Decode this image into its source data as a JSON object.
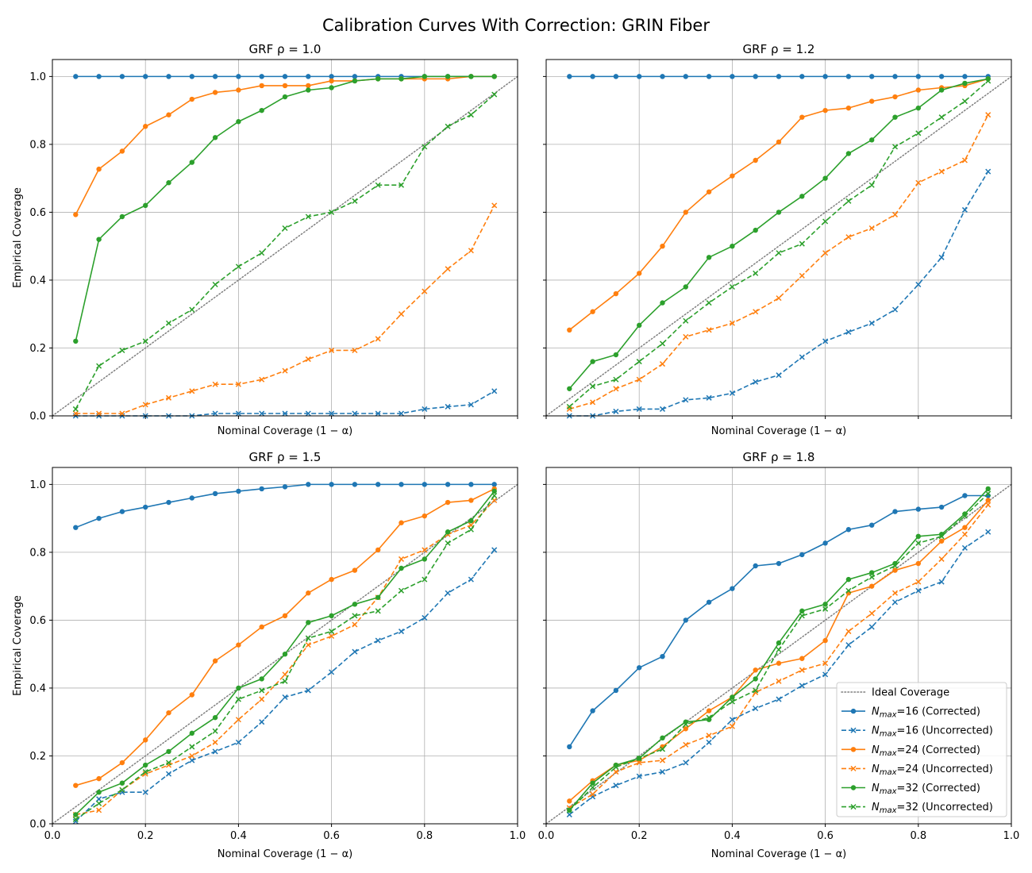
{
  "figure": {
    "title": "Calibration Curves With Correction: GRIN Fiber"
  },
  "chart_data": {
    "type": "line",
    "title": "Calibration Curves With Correction: GRIN Fiber",
    "xlabel": "Nominal Coverage (1 − α)",
    "ylabel": "Empirical Coverage",
    "xlim": [
      0.0,
      1.0
    ],
    "ylim": [
      0.0,
      1.05
    ],
    "xticks": [
      "0.0",
      "0.2",
      "0.4",
      "0.6",
      "0.8",
      "1.0"
    ],
    "yticks": [
      "0.0",
      "0.2",
      "0.4",
      "0.6",
      "0.8",
      "1.0"
    ],
    "grid": true,
    "x": [
      0.05,
      0.1,
      0.15,
      0.2,
      0.25,
      0.3,
      0.35,
      0.4,
      0.45,
      0.5,
      0.55,
      0.6,
      0.65,
      0.7,
      0.75,
      0.8,
      0.85,
      0.9,
      0.95
    ],
    "legend": {
      "placement": "lower-right",
      "entries": [
        {
          "label": "Ideal Coverage",
          "color": "#808080",
          "style": "dotted",
          "marker": "none"
        },
        {
          "label": "N_max=16 (Corrected)",
          "color": "#1f77b4",
          "style": "solid",
          "marker": "circle"
        },
        {
          "label": "N_max=16 (Uncorrected)",
          "color": "#1f77b4",
          "style": "dashed",
          "marker": "x"
        },
        {
          "label": "N_max=24 (Corrected)",
          "color": "#ff7f0e",
          "style": "solid",
          "marker": "circle"
        },
        {
          "label": "N_max=24 (Uncorrected)",
          "color": "#ff7f0e",
          "style": "dashed",
          "marker": "x"
        },
        {
          "label": "N_max=32 (Corrected)",
          "color": "#2ca02c",
          "style": "solid",
          "marker": "circle"
        },
        {
          "label": "N_max=32 (Uncorrected)",
          "color": "#2ca02c",
          "style": "dashed",
          "marker": "x"
        }
      ]
    },
    "panels": [
      {
        "title": "GRF ρ = 1.0",
        "series": [
          {
            "name": "N_max=16 (Corrected)",
            "values": [
              1.0,
              1.0,
              1.0,
              1.0,
              1.0,
              1.0,
              1.0,
              1.0,
              1.0,
              1.0,
              1.0,
              1.0,
              1.0,
              1.0,
              1.0,
              1.0,
              1.0,
              1.0,
              1.0
            ]
          },
          {
            "name": "N_max=16 (Uncorrected)",
            "values": [
              0.0,
              0.0,
              0.0,
              0.0,
              0.0,
              0.0,
              0.007,
              0.007,
              0.007,
              0.007,
              0.007,
              0.007,
              0.007,
              0.007,
              0.007,
              0.02,
              0.027,
              0.033,
              0.073
            ]
          },
          {
            "name": "N_max=24 (Corrected)",
            "values": [
              0.593,
              0.727,
              0.78,
              0.853,
              0.887,
              0.933,
              0.953,
              0.96,
              0.973,
              0.973,
              0.973,
              0.987,
              0.987,
              0.993,
              0.993,
              0.993,
              0.993,
              1.0,
              1.0
            ]
          },
          {
            "name": "N_max=24 (Uncorrected)",
            "values": [
              0.007,
              0.007,
              0.007,
              0.033,
              0.053,
              0.073,
              0.093,
              0.093,
              0.107,
              0.133,
              0.167,
              0.193,
              0.193,
              0.227,
              0.3,
              0.367,
              0.433,
              0.487,
              0.62
            ]
          },
          {
            "name": "N_max=32 (Corrected)",
            "values": [
              0.22,
              0.52,
              0.587,
              0.62,
              0.687,
              0.747,
              0.82,
              0.867,
              0.9,
              0.94,
              0.96,
              0.967,
              0.987,
              0.993,
              0.993,
              1.0,
              1.0,
              1.0,
              1.0
            ]
          },
          {
            "name": "N_max=32 (Uncorrected)",
            "values": [
              0.02,
              0.147,
              0.193,
              0.22,
              0.273,
              0.313,
              0.387,
              0.44,
              0.48,
              0.553,
              0.587,
              0.6,
              0.633,
              0.68,
              0.68,
              0.793,
              0.853,
              0.887,
              0.947
            ]
          }
        ]
      },
      {
        "title": "GRF ρ = 1.2",
        "series": [
          {
            "name": "N_max=16 (Corrected)",
            "values": [
              1.0,
              1.0,
              1.0,
              1.0,
              1.0,
              1.0,
              1.0,
              1.0,
              1.0,
              1.0,
              1.0,
              1.0,
              1.0,
              1.0,
              1.0,
              1.0,
              1.0,
              1.0,
              1.0
            ]
          },
          {
            "name": "N_max=16 (Uncorrected)",
            "values": [
              0.0,
              0.0,
              0.013,
              0.02,
              0.02,
              0.047,
              0.053,
              0.067,
              0.1,
              0.12,
              0.173,
              0.22,
              0.247,
              0.273,
              0.313,
              0.387,
              0.467,
              0.607,
              0.72
            ]
          },
          {
            "name": "N_max=24 (Corrected)",
            "values": [
              0.253,
              0.307,
              0.36,
              0.42,
              0.5,
              0.6,
              0.66,
              0.707,
              0.753,
              0.807,
              0.88,
              0.9,
              0.907,
              0.927,
              0.94,
              0.96,
              0.967,
              0.973,
              0.993
            ]
          },
          {
            "name": "N_max=24 (Uncorrected)",
            "values": [
              0.02,
              0.04,
              0.08,
              0.107,
              0.153,
              0.233,
              0.253,
              0.273,
              0.307,
              0.347,
              0.413,
              0.48,
              0.527,
              0.553,
              0.593,
              0.687,
              0.72,
              0.753,
              0.887
            ]
          },
          {
            "name": "N_max=32 (Corrected)",
            "values": [
              0.08,
              0.16,
              0.18,
              0.267,
              0.333,
              0.38,
              0.467,
              0.5,
              0.547,
              0.6,
              0.647,
              0.7,
              0.773,
              0.813,
              0.88,
              0.907,
              0.96,
              0.98,
              0.993
            ]
          },
          {
            "name": "N_max=32 (Uncorrected)",
            "values": [
              0.027,
              0.087,
              0.107,
              0.16,
              0.213,
              0.28,
              0.333,
              0.38,
              0.42,
              0.48,
              0.507,
              0.573,
              0.633,
              0.68,
              0.793,
              0.833,
              0.88,
              0.927,
              0.987
            ]
          }
        ]
      },
      {
        "title": "GRF ρ = 1.5",
        "series": [
          {
            "name": "N_max=16 (Corrected)",
            "values": [
              0.873,
              0.9,
              0.92,
              0.933,
              0.947,
              0.96,
              0.973,
              0.98,
              0.987,
              0.993,
              1.0,
              1.0,
              1.0,
              1.0,
              1.0,
              1.0,
              1.0,
              1.0,
              1.0
            ]
          },
          {
            "name": "N_max=16 (Uncorrected)",
            "values": [
              0.007,
              0.073,
              0.093,
              0.093,
              0.147,
              0.187,
              0.213,
              0.24,
              0.3,
              0.373,
              0.393,
              0.447,
              0.507,
              0.54,
              0.567,
              0.607,
              0.68,
              0.72,
              0.807
            ]
          },
          {
            "name": "N_max=24 (Corrected)",
            "values": [
              0.113,
              0.133,
              0.18,
              0.247,
              0.327,
              0.38,
              0.48,
              0.527,
              0.58,
              0.613,
              0.68,
              0.72,
              0.747,
              0.807,
              0.887,
              0.907,
              0.947,
              0.953,
              0.987
            ]
          },
          {
            "name": "N_max=24 (Uncorrected)",
            "values": [
              0.027,
              0.04,
              0.1,
              0.147,
              0.173,
              0.2,
              0.24,
              0.307,
              0.367,
              0.44,
              0.527,
              0.553,
              0.587,
              0.667,
              0.78,
              0.807,
              0.853,
              0.88,
              0.953
            ]
          },
          {
            "name": "N_max=32 (Corrected)",
            "values": [
              0.027,
              0.093,
              0.12,
              0.173,
              0.213,
              0.267,
              0.313,
              0.4,
              0.427,
              0.5,
              0.593,
              0.613,
              0.647,
              0.667,
              0.753,
              0.78,
              0.86,
              0.893,
              0.98
            ]
          },
          {
            "name": "N_max=32 (Uncorrected)",
            "values": [
              0.013,
              0.06,
              0.1,
              0.153,
              0.18,
              0.227,
              0.273,
              0.367,
              0.393,
              0.42,
              0.547,
              0.567,
              0.613,
              0.627,
              0.687,
              0.72,
              0.827,
              0.867,
              0.967
            ]
          }
        ]
      },
      {
        "title": "GRF ρ = 1.8",
        "series": [
          {
            "name": "N_max=16 (Corrected)",
            "values": [
              0.227,
              0.333,
              0.393,
              0.46,
              0.493,
              0.6,
              0.653,
              0.693,
              0.76,
              0.767,
              0.793,
              0.827,
              0.867,
              0.88,
              0.92,
              0.927,
              0.933,
              0.967,
              0.967
            ]
          },
          {
            "name": "N_max=16 (Uncorrected)",
            "values": [
              0.027,
              0.08,
              0.113,
              0.14,
              0.153,
              0.18,
              0.24,
              0.307,
              0.34,
              0.367,
              0.407,
              0.44,
              0.527,
              0.58,
              0.653,
              0.687,
              0.713,
              0.813,
              0.86
            ]
          },
          {
            "name": "N_max=24 (Corrected)",
            "values": [
              0.067,
              0.127,
              0.173,
              0.187,
              0.227,
              0.28,
              0.333,
              0.373,
              0.453,
              0.473,
              0.487,
              0.54,
              0.68,
              0.7,
              0.747,
              0.767,
              0.833,
              0.873,
              0.953
            ]
          },
          {
            "name": "N_max=24 (Uncorrected)",
            "values": [
              0.047,
              0.087,
              0.153,
              0.18,
              0.187,
              0.233,
              0.26,
              0.287,
              0.387,
              0.42,
              0.453,
              0.473,
              0.567,
              0.62,
              0.68,
              0.713,
              0.78,
              0.853,
              0.94
            ]
          },
          {
            "name": "N_max=32 (Corrected)",
            "values": [
              0.04,
              0.12,
              0.173,
              0.193,
              0.253,
              0.3,
              0.307,
              0.373,
              0.427,
              0.533,
              0.627,
              0.647,
              0.72,
              0.74,
              0.767,
              0.847,
              0.853,
              0.913,
              0.987
            ]
          },
          {
            "name": "N_max=32 (Uncorrected)",
            "values": [
              0.04,
              0.107,
              0.167,
              0.193,
              0.22,
              0.293,
              0.313,
              0.36,
              0.393,
              0.513,
              0.613,
              0.633,
              0.687,
              0.727,
              0.76,
              0.827,
              0.847,
              0.907,
              0.973
            ]
          }
        ]
      }
    ]
  }
}
